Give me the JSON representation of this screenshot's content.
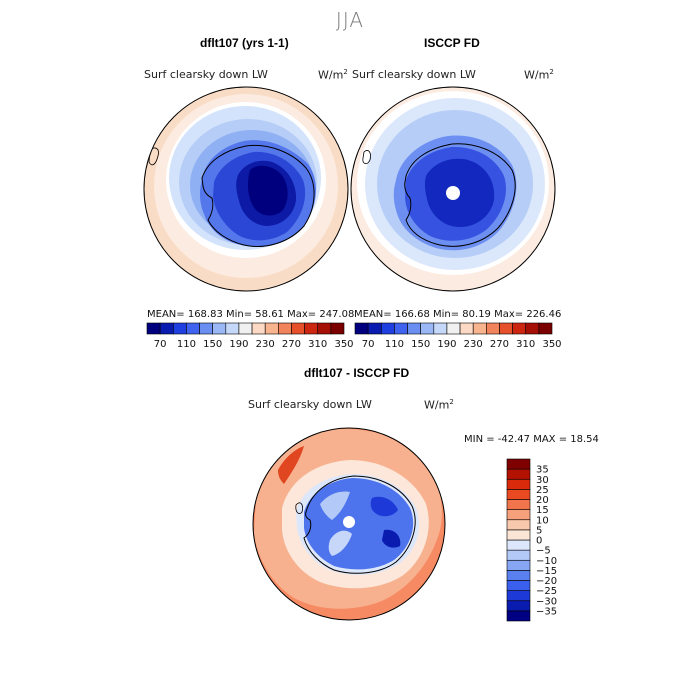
{
  "season": "JJA",
  "panels": [
    {
      "title": "dflt107 (yrs 1-1)",
      "variable": "Surf clearsky down LW",
      "units_base": "W/m",
      "units_exp": "2",
      "stats": "MEAN= 168.83  Min=  58.61  Max= 247.08"
    },
    {
      "title": "ISCCP FD",
      "variable": "Surf clearsky down LW",
      "units_base": "W/m",
      "units_exp": "2",
      "stats": "MEAN= 166.68  Min=  80.19  Max= 226.46"
    }
  ],
  "top_colorbar": {
    "colors": [
      "#00007f",
      "#0a1bb0",
      "#1f3fe0",
      "#3f63ee",
      "#6a8ef2",
      "#9ab7f6",
      "#c5d8fa",
      "#f1f1f1",
      "#fbd9c4",
      "#f8b48f",
      "#f2845d",
      "#e6502b",
      "#cc2610",
      "#a60f05",
      "#7a0000"
    ],
    "tick_labels": [
      "70",
      "110",
      "150",
      "190",
      "230",
      "270",
      "310",
      "350"
    ]
  },
  "diff_panel": {
    "title": "dflt107 - ISCCP FD",
    "variable": "Surf clearsky down LW",
    "units_base": "W/m",
    "units_exp": "2",
    "minmax": "MIN = -42.47 MAX =  18.54"
  },
  "diff_colorbar": {
    "colors": [
      "#000083",
      "#0a1bb0",
      "#1d3ad8",
      "#3a5fec",
      "#5a80f0",
      "#86a6f4",
      "#b3c9f8",
      "#dde7fb",
      "#fbe6d6",
      "#f9c9ad",
      "#f6a07c",
      "#f0744c",
      "#e94a22",
      "#d92a0c",
      "#b31203",
      "#7f0000"
    ],
    "tick_labels": [
      "35",
      "30",
      "25",
      "20",
      "15",
      "10",
      "5",
      "0",
      "−5",
      "−10",
      "−15",
      "−20",
      "−25",
      "−30",
      "−35"
    ]
  },
  "icons": {
    "map_projection": "south-polar-stereographic-map"
  }
}
